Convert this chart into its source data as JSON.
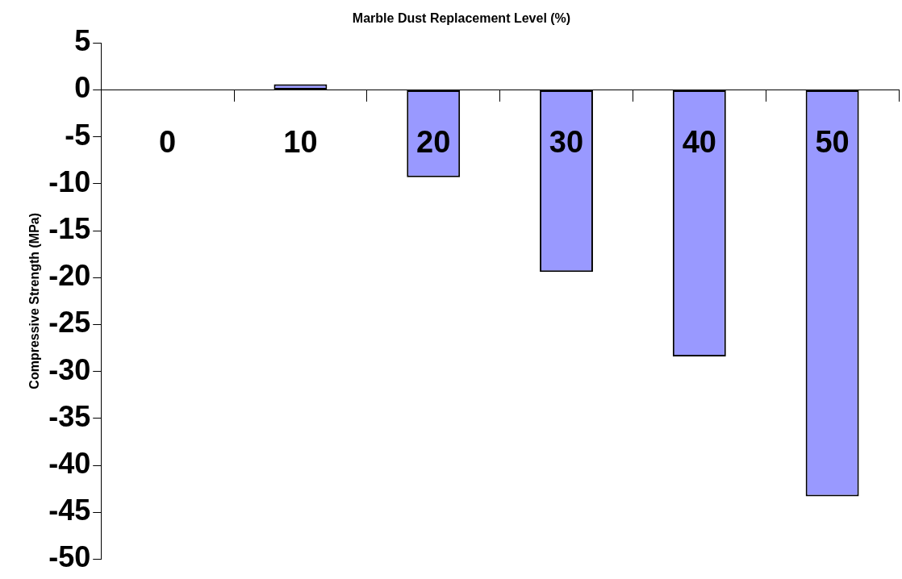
{
  "chart_data": {
    "type": "bar",
    "xlabel": "Marble Dust Replacement Level (%)",
    "ylabel": "Compressive Strength (MPa)",
    "categories": [
      "0",
      "10",
      "20",
      "30",
      "40",
      "50"
    ],
    "values": [
      0,
      0.6,
      -9.3,
      -19.4,
      -28.4,
      -43.3
    ],
    "color": "#9999ff",
    "ylim": [
      -50,
      5
    ],
    "yticks": [
      5,
      0,
      -5,
      -10,
      -15,
      -20,
      -25,
      -30,
      -35,
      -40,
      -45,
      -50
    ],
    "grid": false,
    "legend": false
  }
}
